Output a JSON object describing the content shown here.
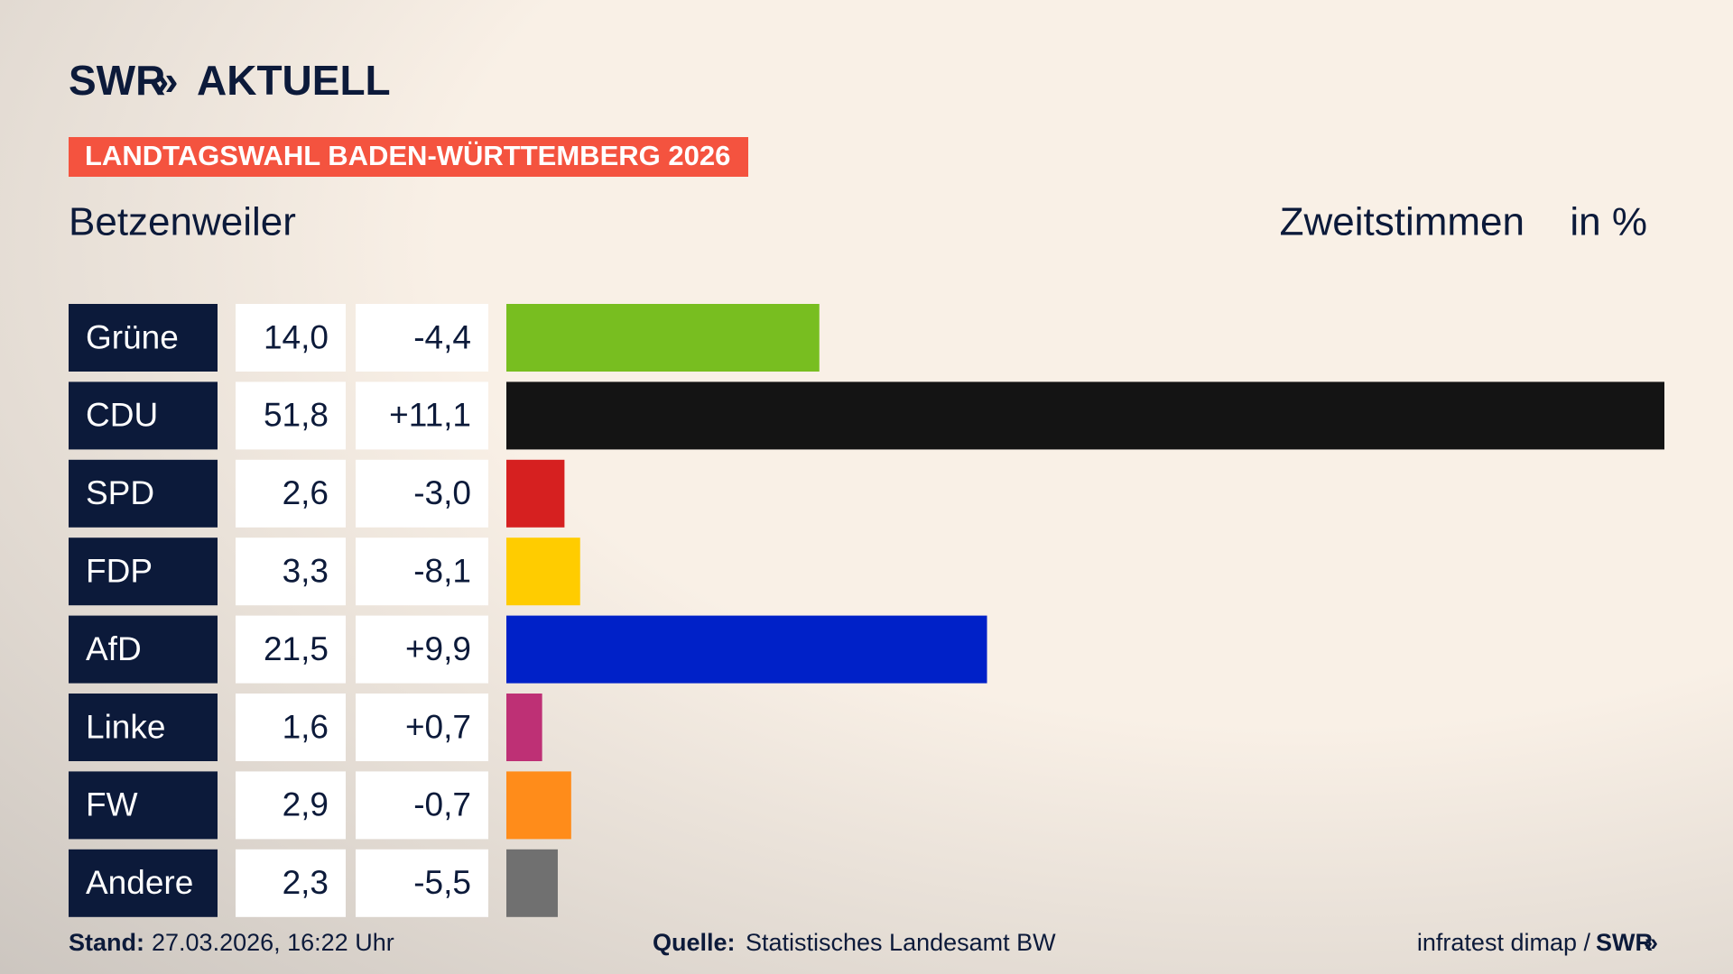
{
  "chart_data": {
    "type": "bar",
    "orientation": "horizontal",
    "brand": "SWR",
    "brand_sub": "AKTUELL",
    "banner": "LANDTAGSWAHL BADEN-WÜRTTEMBERG 2026",
    "title": "Betzenweiler",
    "measure": "Zweitstimmen",
    "unit": "in %",
    "categories": [
      "Grüne",
      "CDU",
      "SPD",
      "FDP",
      "AfD",
      "Linke",
      "FW",
      "Andere"
    ],
    "values": [
      14.0,
      51.8,
      2.6,
      3.3,
      21.5,
      1.6,
      2.9,
      2.3
    ],
    "value_labels": [
      "14,0",
      "51,8",
      "2,6",
      "3,3",
      "21,5",
      "1,6",
      "2,9",
      "2,3"
    ],
    "change_labels": [
      "-4,4",
      "+11,1",
      "-3,0",
      "-8,1",
      "+9,9",
      "+0,7",
      "-0,7",
      "-5,5"
    ],
    "colors": [
      "#78be20",
      "#141414",
      "#d62020",
      "#ffcc00",
      "#0021c8",
      "#be3075",
      "#ff8c1a",
      "#707070"
    ],
    "xlim": [
      0,
      51.8
    ],
    "footer": {
      "stand_label": "Stand:",
      "stand": "27.03.2026, 16:22 Uhr",
      "source_label": "Quelle:",
      "source": "Statistisches Landesamt BW",
      "credit": "infratest dimap /",
      "credit_brand": "SWR"
    }
  }
}
